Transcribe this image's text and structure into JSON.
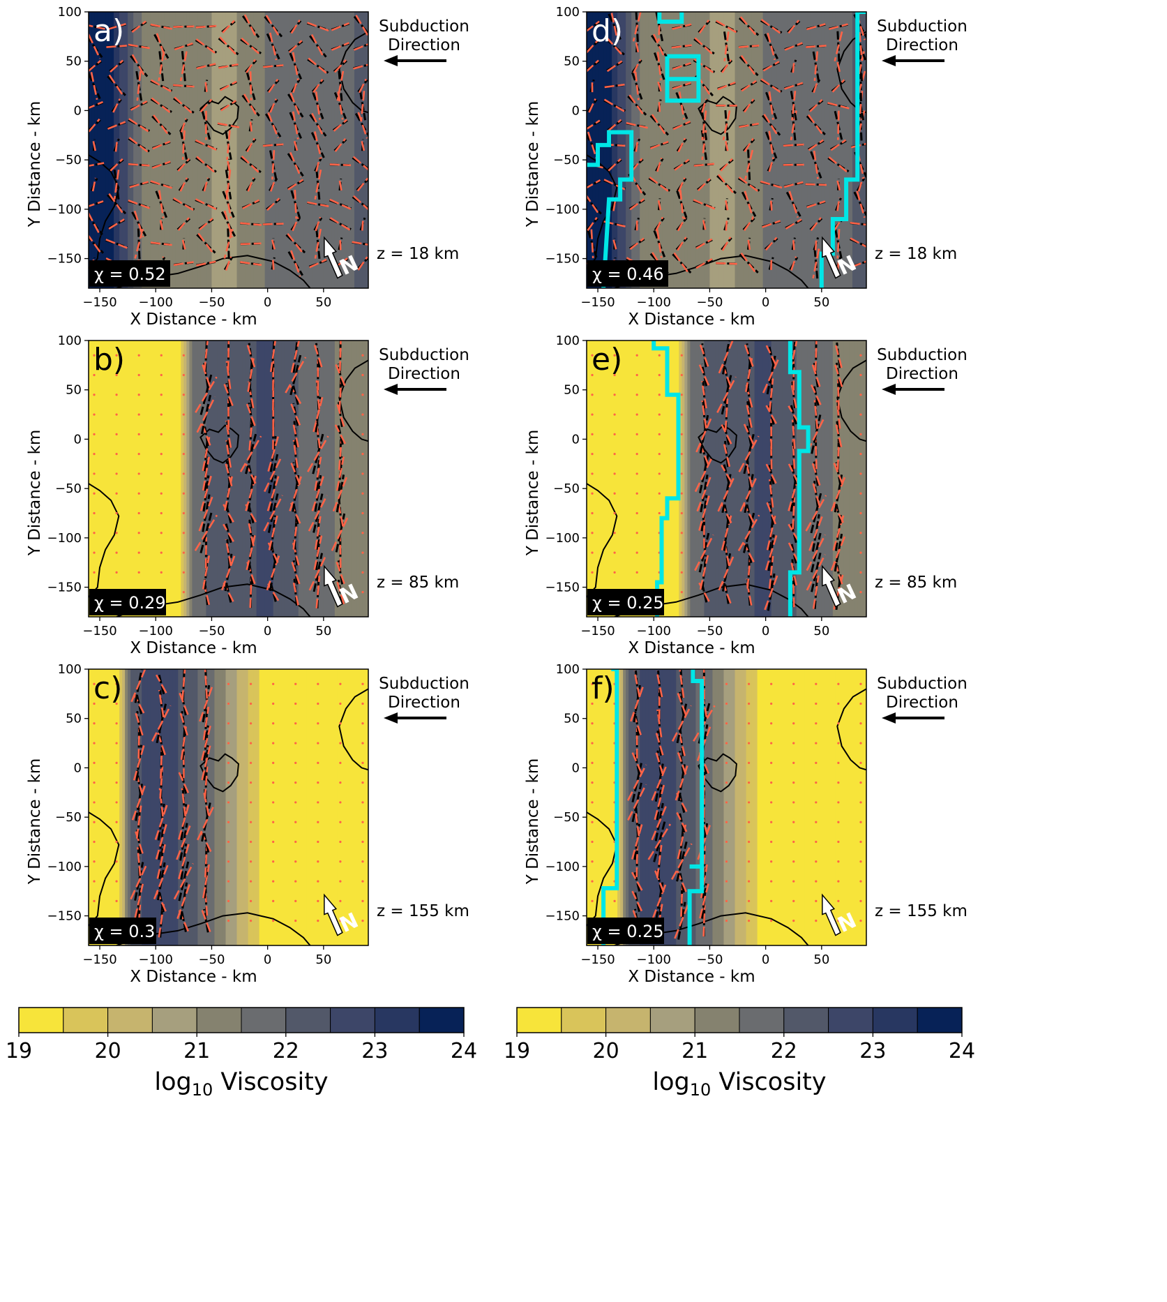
{
  "figure": {
    "colorbar_left": {
      "label": "log10 Viscosity",
      "ticks": [
        "19",
        "20",
        "21",
        "22",
        "23",
        "24"
      ]
    },
    "colorbar_right": {
      "label": "log10 Viscosity",
      "ticks": [
        "19",
        "20",
        "21",
        "22",
        "23",
        "24"
      ]
    },
    "colors": {
      "levels": [
        "#f7e43a",
        "#d9c45a",
        "#c6b46e",
        "#a69f7e",
        "#85826f",
        "#6a6c6f",
        "#525869",
        "#3d4668",
        "#283761",
        "#072257"
      ],
      "measured_splits": "#ff6347",
      "predicted_splits": "#000000",
      "region_outline": "#00e6e6",
      "north_arrow": "#ffffff"
    }
  },
  "chart_data": [
    {
      "panel": "a)",
      "type": "heatmap",
      "depth": "z = 18 km",
      "chi": "χ = 0.52",
      "xlabel": "X Distance - km",
      "ylabel": "Y Distance - km",
      "xlim": [
        -160,
        90
      ],
      "ylim": [
        -180,
        100
      ],
      "xticks": [
        -150,
        -100,
        -50,
        0,
        50
      ],
      "yticks": [
        -150,
        -100,
        -50,
        0,
        50,
        100
      ],
      "xticklabels": [
        "−150",
        "−100",
        "−50",
        "0",
        "50"
      ],
      "yticklabels": [
        "−150",
        "−100",
        "−50",
        "0",
        "50",
        "100"
      ],
      "annotation": [
        "Subduction",
        "Direction"
      ],
      "north_label": "N",
      "viscosity_profile": {
        "x": [
          -160,
          -140,
          -125,
          -110,
          -95,
          -80,
          -65,
          -50,
          -35,
          -20,
          -5,
          10,
          25,
          40,
          55,
          70,
          90
        ],
        "log10_viscosity": [
          23.9,
          23.6,
          22.4,
          21.2,
          21.0,
          21.0,
          21.1,
          21.0,
          20.9,
          21.1,
          21.4,
          21.8,
          22.0,
          21.7,
          21.5,
          21.8,
          22.3
        ]
      },
      "cyan_outline": false
    },
    {
      "panel": "b)",
      "type": "heatmap",
      "depth": "z = 85 km",
      "chi": "χ = 0.29",
      "xlabel": "X Distance - km",
      "ylabel": "Y Distance - km",
      "xlim": [
        -160,
        90
      ],
      "ylim": [
        -180,
        100
      ],
      "xticks": [
        -150,
        -100,
        -50,
        0,
        50
      ],
      "yticks": [
        -150,
        -100,
        -50,
        0,
        50,
        100
      ],
      "xticklabels": [
        "−150",
        "−100",
        "−50",
        "0",
        "50"
      ],
      "yticklabels": [
        "−150",
        "−100",
        "−50",
        "0",
        "50",
        "100"
      ],
      "annotation": [
        "Subduction",
        "Direction"
      ],
      "north_label": "N",
      "viscosity_profile": {
        "x": [
          -160,
          -90,
          -78,
          -68,
          -55,
          -40,
          -25,
          -10,
          5,
          20,
          35,
          50,
          70,
          90
        ],
        "log10_viscosity": [
          19.0,
          19.0,
          19.4,
          21.6,
          22.0,
          22.1,
          22.3,
          22.5,
          22.5,
          22.2,
          21.8,
          21.6,
          21.4,
          21.2
        ]
      },
      "cyan_outline": false
    },
    {
      "panel": "c)",
      "type": "heatmap",
      "depth": "z = 155 km",
      "chi": "χ = 0.3",
      "xlabel": "X Distance - km",
      "ylabel": "Y Distance - km",
      "xlim": [
        -160,
        90
      ],
      "ylim": [
        -180,
        100
      ],
      "xticks": [
        -150,
        -100,
        -50,
        0,
        50
      ],
      "yticks": [
        -150,
        -100,
        -50,
        0,
        50,
        100
      ],
      "xticklabels": [
        "−150",
        "−100",
        "−50",
        "0",
        "50"
      ],
      "yticklabels": [
        "−150",
        "−100",
        "−50",
        "0",
        "50",
        "100"
      ],
      "annotation": [
        "Subduction",
        "Direction"
      ],
      "north_label": "N",
      "viscosity_profile": {
        "x": [
          -160,
          -133,
          -123,
          -110,
          -95,
          -80,
          -65,
          -50,
          -40,
          -30,
          -20,
          -10,
          0,
          90
        ],
        "log10_viscosity": [
          19.0,
          19.0,
          22.0,
          22.6,
          22.7,
          22.5,
          22.1,
          21.6,
          21.1,
          20.6,
          20.1,
          19.6,
          19.1,
          19.0
        ]
      },
      "cyan_outline": false
    },
    {
      "panel": "d)",
      "type": "heatmap",
      "depth": "z = 18 km",
      "chi": "χ = 0.46",
      "xlabel": "X Distance - km",
      "ylabel": "Y Distance - km",
      "xlim": [
        -160,
        90
      ],
      "ylim": [
        -180,
        100
      ],
      "xticks": [
        -150,
        -100,
        -50,
        0,
        50
      ],
      "yticks": [
        -150,
        -100,
        -50,
        0,
        50,
        100
      ],
      "xticklabels": [
        "−150",
        "−100",
        "−50",
        "0",
        "50"
      ],
      "yticklabels": [
        "−150",
        "−100",
        "−50",
        "0",
        "50",
        "100"
      ],
      "annotation": [
        "Subduction",
        "Direction"
      ],
      "north_label": "N",
      "viscosity_profile": {
        "x": [
          -160,
          -140,
          -125,
          -110,
          -95,
          -80,
          -65,
          -50,
          -35,
          -20,
          -5,
          10,
          25,
          40,
          55,
          70,
          90
        ],
        "log10_viscosity": [
          23.9,
          23.6,
          22.4,
          21.2,
          21.0,
          21.0,
          21.1,
          21.0,
          20.9,
          21.1,
          21.4,
          21.8,
          22.0,
          21.7,
          21.5,
          21.8,
          22.3
        ]
      },
      "cyan_outline": true
    },
    {
      "panel": "e)",
      "type": "heatmap",
      "depth": "z = 85 km",
      "chi": "χ = 0.25",
      "xlabel": "X Distance - km",
      "ylabel": "Y Distance - km",
      "xlim": [
        -160,
        90
      ],
      "ylim": [
        -180,
        100
      ],
      "xticks": [
        -150,
        -100,
        -50,
        0,
        50
      ],
      "yticks": [
        -150,
        -100,
        -50,
        0,
        50,
        100
      ],
      "xticklabels": [
        "−150",
        "−100",
        "−50",
        "0",
        "50"
      ],
      "yticklabels": [
        "−150",
        "−100",
        "−50",
        "0",
        "50",
        "100"
      ],
      "annotation": [
        "Subduction",
        "Direction"
      ],
      "north_label": "N",
      "viscosity_profile": {
        "x": [
          -160,
          -90,
          -78,
          -68,
          -55,
          -40,
          -25,
          -10,
          5,
          20,
          35,
          50,
          70,
          90
        ],
        "log10_viscosity": [
          19.0,
          19.0,
          19.4,
          21.6,
          22.0,
          22.1,
          22.3,
          22.5,
          22.5,
          22.2,
          21.8,
          21.6,
          21.4,
          21.2
        ]
      },
      "cyan_outline": true
    },
    {
      "panel": "f)",
      "type": "heatmap",
      "depth": "z = 155 km",
      "chi": "χ = 0.25",
      "xlabel": "X Distance - km",
      "ylabel": "Y Distance - km",
      "xlim": [
        -160,
        90
      ],
      "ylim": [
        -180,
        100
      ],
      "xticks": [
        -150,
        -100,
        -50,
        0,
        50
      ],
      "yticks": [
        -150,
        -100,
        -50,
        0,
        50,
        100
      ],
      "xticklabels": [
        "−150",
        "−100",
        "−50",
        "0",
        "50"
      ],
      "yticklabels": [
        "−150",
        "−100",
        "−50",
        "0",
        "50",
        "100"
      ],
      "annotation": [
        "Subduction",
        "Direction"
      ],
      "north_label": "N",
      "viscosity_profile": {
        "x": [
          -160,
          -133,
          -123,
          -110,
          -95,
          -80,
          -65,
          -50,
          -40,
          -30,
          -20,
          -10,
          0,
          90
        ],
        "log10_viscosity": [
          19.0,
          19.0,
          22.0,
          22.6,
          22.7,
          22.5,
          22.1,
          21.6,
          21.1,
          20.6,
          20.1,
          19.6,
          19.1,
          19.0
        ]
      },
      "cyan_outline": true
    }
  ]
}
